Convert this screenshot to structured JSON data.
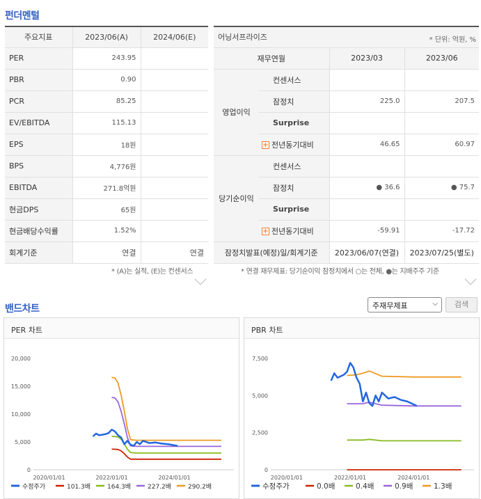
{
  "fundamental": {
    "title": "펀더멘털",
    "headers": [
      "주요지표",
      "2023/06(A)",
      "2024/06(E)"
    ],
    "rows": [
      [
        "PER",
        "243.95",
        ""
      ],
      [
        "PBR",
        "0.90",
        ""
      ],
      [
        "PCR",
        "85.25",
        ""
      ],
      [
        "EV/EBITDA",
        "115.13",
        ""
      ],
      [
        "EPS",
        "18원",
        ""
      ],
      [
        "BPS",
        "4,776원",
        ""
      ],
      [
        "EBITDA",
        "271.8억원",
        ""
      ],
      [
        "현금DPS",
        "65원",
        ""
      ],
      [
        "현금배당수익률",
        "1.52%",
        ""
      ],
      [
        "회계기준",
        "연결",
        "연결"
      ]
    ],
    "note": "* (A)는 실적, (E)는 컨센서스"
  },
  "earnings": {
    "company": "어닝서프라이즈",
    "unit": "* 단위: 억원, %",
    "headers": [
      "재무연월",
      "2023/03",
      "2023/06"
    ],
    "groups": [
      {
        "name": "영업이익",
        "rows": [
          {
            "label": "컨센서스",
            "v1": "",
            "v2": ""
          },
          {
            "label": "잠정치",
            "v1": "225.0",
            "v2": "207.5"
          },
          {
            "label": "Surprise",
            "v1": "",
            "v2": ""
          },
          {
            "label": "전년동기대비",
            "v1": "46.65",
            "v2": "60.97"
          }
        ]
      },
      {
        "name": "당기순이익",
        "rows": [
          {
            "label": "컨센서스",
            "v1": "",
            "v2": ""
          },
          {
            "label": "잠정치",
            "v1": "● 36.6",
            "v2": "● 75.7"
          },
          {
            "label": "Surprise",
            "v1": "",
            "v2": ""
          },
          {
            "label": "전년동기대비",
            "v1": "-59.91",
            "v2": "-17.72"
          }
        ]
      }
    ],
    "footer_label": "잠정치발표(예정)일/회계기준",
    "footer_v1": "2023/06/07(연결)",
    "footer_v2": "2023/07/25(별도)",
    "note": "* 연결 재무제표: 당기순이익 잠정치에서 ○는 전체, ●는 지배주주 기준"
  },
  "band": {
    "title": "밴드차트",
    "select_value": "주재무제표",
    "search_label": "검색"
  },
  "chart_data": [
    {
      "type": "line",
      "title": "PER 차트",
      "x_ticks": [
        "2020/01/01",
        "2022/01/01",
        "2024/01/01"
      ],
      "y_ticks": [
        "0",
        "5,000",
        "10,000",
        "15,000",
        "20,000"
      ],
      "ylim": [
        0,
        20000
      ],
      "xlim": [
        2019.5,
        2025.9
      ],
      "series": [
        {
          "name": "수정주가",
          "color": "#2266dd",
          "width": 2.5,
          "x": [
            2021.4,
            2021.5,
            2021.6,
            2021.7,
            2021.8,
            2021.9,
            2022.0,
            2022.1,
            2022.2,
            2022.3,
            2022.4,
            2022.5,
            2022.6,
            2022.7,
            2022.8,
            2022.9,
            2023.0,
            2023.2,
            2023.4,
            2023.6,
            2023.8,
            2024.0,
            2024.1
          ],
          "y": [
            6000,
            6500,
            6200,
            6300,
            6400,
            6600,
            7200,
            6900,
            6200,
            5800,
            4600,
            5200,
            4500,
            4300,
            5000,
            4600,
            5200,
            4800,
            4900,
            4700,
            4600,
            4400,
            4300
          ]
        },
        {
          "name": "101.3배",
          "color": "#cc2200",
          "width": 1.8,
          "x": [
            2022.0,
            2022.1,
            2022.2,
            2022.3,
            2022.4,
            2022.5,
            2022.6,
            2022.8,
            2023.0,
            2024.0,
            2025.5
          ],
          "y": [
            3700,
            3690,
            3650,
            3400,
            2900,
            2300,
            1900,
            1900,
            1900,
            1900,
            1900
          ]
        },
        {
          "name": "164.3배",
          "color": "#88bb22",
          "width": 1.8,
          "x": [
            2022.0,
            2022.1,
            2022.2,
            2022.3,
            2022.4,
            2022.5,
            2022.6,
            2022.8,
            2023.0,
            2024.0,
            2025.5
          ],
          "y": [
            6000,
            5980,
            5900,
            5500,
            4700,
            3700,
            3100,
            3000,
            3000,
            3000,
            3000
          ]
        },
        {
          "name": "227.2배",
          "color": "#9966dd",
          "width": 1.8,
          "x": [
            2022.0,
            2022.1,
            2022.2,
            2022.3,
            2022.4,
            2022.5,
            2022.6,
            2022.8,
            2023.0,
            2024.0,
            2025.5
          ],
          "y": [
            13000,
            12900,
            12200,
            10500,
            8300,
            5800,
            4300,
            4200,
            4200,
            4200,
            4200
          ]
        },
        {
          "name": "290.2배",
          "color": "#ee9922",
          "width": 1.8,
          "x": [
            2022.0,
            2022.1,
            2022.2,
            2022.3,
            2022.4,
            2022.5,
            2022.6,
            2022.8,
            2023.0,
            2024.0,
            2025.5
          ],
          "y": [
            16600,
            16500,
            15600,
            13400,
            10600,
            7400,
            5400,
            5300,
            5300,
            5300,
            5300
          ]
        }
      ]
    },
    {
      "type": "line",
      "title": "PBR 차트",
      "x_ticks": [
        "2020/01/01",
        "2022/01/01",
        "2024/01/01"
      ],
      "y_ticks": [
        "0",
        "2,500",
        "5,000",
        "7,500"
      ],
      "ylim": [
        0,
        7500
      ],
      "xlim": [
        2019.5,
        2025.9
      ],
      "series": [
        {
          "name": "수정주가",
          "color": "#2266dd",
          "width": 2.5,
          "x": [
            2021.4,
            2021.5,
            2021.6,
            2021.7,
            2021.8,
            2021.9,
            2022.0,
            2022.1,
            2022.2,
            2022.3,
            2022.4,
            2022.5,
            2022.6,
            2022.7,
            2022.8,
            2022.9,
            2023.0,
            2023.2,
            2023.4,
            2023.6,
            2023.8,
            2024.0,
            2024.1
          ],
          "y": [
            6000,
            6500,
            6200,
            6300,
            6400,
            6600,
            7200,
            6900,
            6200,
            5800,
            4600,
            5200,
            4500,
            4300,
            5000,
            4600,
            5200,
            4800,
            4900,
            4700,
            4600,
            4400,
            4300
          ]
        },
        {
          "name": "0.0배",
          "color": "#cc2200",
          "width": 1.8,
          "x": [
            2021.9,
            2025.5
          ],
          "y": [
            0,
            0
          ]
        },
        {
          "name": "0.4배",
          "color": "#88bb22",
          "width": 1.8,
          "x": [
            2021.9,
            2022.4,
            2022.6,
            2023.0,
            2024.0,
            2025.5
          ],
          "y": [
            2000,
            2000,
            2050,
            1950,
            1950,
            1950
          ]
        },
        {
          "name": "0.9배",
          "color": "#9966dd",
          "width": 1.8,
          "x": [
            2021.9,
            2022.4,
            2022.6,
            2023.0,
            2024.0,
            2025.5
          ],
          "y": [
            4450,
            4450,
            4550,
            4350,
            4300,
            4300
          ]
        },
        {
          "name": "1.3배",
          "color": "#ee9922",
          "width": 1.8,
          "x": [
            2021.9,
            2022.2,
            2022.4,
            2022.6,
            2023.0,
            2024.0,
            2025.5
          ],
          "y": [
            6350,
            6400,
            6500,
            6650,
            6300,
            6250,
            6250
          ]
        }
      ]
    }
  ]
}
